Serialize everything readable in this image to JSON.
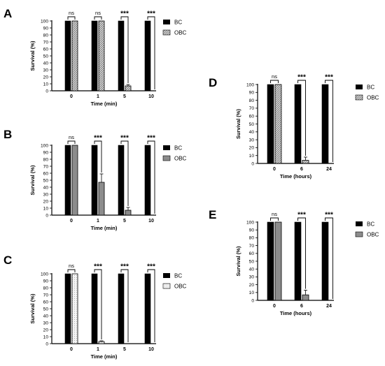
{
  "colors": {
    "bc": "#000000",
    "obc_a": "#d9d9d9",
    "obc_b": "#8c8c8c",
    "obc_c": "#f0f0f0",
    "obc_d": "#d9d9d9",
    "obc_e": "#8c8c8c",
    "axis": "#000000"
  },
  "chart_data": [
    {
      "panel": "A",
      "type": "bar",
      "categories": [
        "0",
        "1",
        "5",
        "10"
      ],
      "series": [
        {
          "name": "BC",
          "values": [
            100,
            100,
            100,
            100
          ],
          "errors": [
            0,
            0,
            0,
            0
          ],
          "fill": "solid"
        },
        {
          "name": "OBC",
          "values": [
            100,
            100,
            7,
            0
          ],
          "errors": [
            0,
            0,
            2,
            0
          ],
          "fill": "hatch"
        }
      ],
      "significance": [
        "ns",
        "ns",
        "***",
        "***"
      ],
      "xlabel": "Time (min)",
      "ylabel": "Survival (%)",
      "ylim": [
        0,
        100
      ],
      "yticks": [
        "0",
        "10",
        "20",
        "30",
        "40",
        "50",
        "60",
        "70",
        "80",
        "90",
        "100"
      ],
      "legend": "right"
    },
    {
      "panel": "B",
      "type": "bar",
      "categories": [
        "0",
        "1",
        "5",
        "10"
      ],
      "series": [
        {
          "name": "BC",
          "values": [
            100,
            100,
            100,
            100
          ],
          "errors": [
            0,
            0,
            0,
            0
          ],
          "fill": "solid"
        },
        {
          "name": "OBC",
          "values": [
            100,
            47,
            7,
            0
          ],
          "errors": [
            0,
            12,
            4,
            0
          ],
          "fill": "solid"
        }
      ],
      "significance": [
        "ns",
        "***",
        "***",
        "***"
      ],
      "xlabel": "Time (min)",
      "ylabel": "Survival (%)",
      "ylim": [
        0,
        100
      ],
      "yticks": [
        "0",
        "10",
        "20",
        "30",
        "40",
        "50",
        "60",
        "70",
        "80",
        "90",
        "100"
      ],
      "legend": "right"
    },
    {
      "panel": "C",
      "type": "bar",
      "categories": [
        "0",
        "1",
        "5",
        "10"
      ],
      "series": [
        {
          "name": "BC",
          "values": [
            100,
            100,
            100,
            100
          ],
          "errors": [
            0,
            0,
            0,
            0
          ],
          "fill": "solid"
        },
        {
          "name": "OBC",
          "values": [
            100,
            3,
            0,
            0
          ],
          "errors": [
            0,
            1,
            0,
            0
          ],
          "fill": "dots"
        }
      ],
      "significance": [
        "ns",
        "***",
        "***",
        "***"
      ],
      "xlabel": "Time (min)",
      "ylabel": "Survival (%)",
      "ylim": [
        0,
        100
      ],
      "yticks": [
        "0",
        "10",
        "20",
        "30",
        "40",
        "50",
        "60",
        "70",
        "80",
        "90",
        "100"
      ],
      "legend": "right"
    },
    {
      "panel": "D",
      "type": "bar",
      "categories": [
        "0",
        "6",
        "24"
      ],
      "series": [
        {
          "name": "BC",
          "values": [
            100,
            100,
            100
          ],
          "errors": [
            0,
            0,
            0
          ],
          "fill": "solid"
        },
        {
          "name": "OBC",
          "values": [
            100,
            4,
            0
          ],
          "errors": [
            0,
            4,
            0
          ],
          "fill": "hatch"
        }
      ],
      "significance": [
        "ns",
        "***",
        "***"
      ],
      "xlabel": "Time (hours)",
      "ylabel": "Survival (%)",
      "ylim": [
        0,
        100
      ],
      "yticks": [
        "0",
        "10",
        "20",
        "30",
        "40",
        "50",
        "60",
        "70",
        "80",
        "90",
        "100"
      ],
      "legend": "right"
    },
    {
      "panel": "E",
      "type": "bar",
      "categories": [
        "0",
        "6",
        "24"
      ],
      "series": [
        {
          "name": "BC",
          "values": [
            100,
            100,
            100
          ],
          "errors": [
            0,
            0,
            0
          ],
          "fill": "solid"
        },
        {
          "name": "OBC",
          "values": [
            100,
            7,
            0
          ],
          "errors": [
            0,
            6,
            0
          ],
          "fill": "solid"
        }
      ],
      "significance": [
        "ns",
        "***",
        "***"
      ],
      "xlabel": "Time (hours)",
      "ylabel": "Survival (%)",
      "ylim": [
        0,
        100
      ],
      "yticks": [
        "0",
        "10",
        "20",
        "30",
        "40",
        "50",
        "60",
        "70",
        "80",
        "90",
        "100"
      ],
      "legend": "right"
    }
  ]
}
